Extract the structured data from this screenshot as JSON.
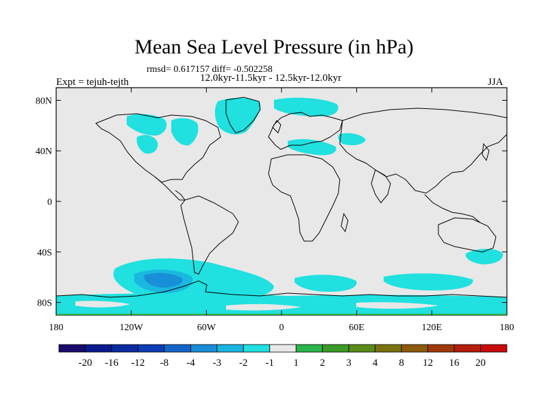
{
  "title": "Mean Sea Level Pressure (in hPa)",
  "stats": "rmsd= 0.617157 diff= -0.502258",
  "periods": "12.0kyr-11.5kyr - 12.5kyr-12.0kyr",
  "experiment": "Expt = tejuh-tejth",
  "season": "JJA",
  "map": {
    "lat_labels": [
      "80N",
      "40N",
      "0",
      "40S",
      "80S"
    ],
    "lon_labels": [
      "180",
      "120W",
      "60W",
      "0",
      "60E",
      "120E",
      "180"
    ],
    "land_color": "#e8e8e8",
    "anomaly_color_weak": "#20e0e0",
    "anomaly_color_mid": "#1ab8e0",
    "anomaly_color_strong": "#1890d8"
  },
  "colorbar": {
    "labels": [
      "-20",
      "-16",
      "-12",
      "-8",
      "-4",
      "-3",
      "-2",
      "-1",
      "1",
      "2",
      "3",
      "4",
      "8",
      "12",
      "16",
      "20"
    ],
    "colors": [
      "#1a0a6e",
      "#0a1a8c",
      "#0a2aa0",
      "#0a3cb4",
      "#1464c8",
      "#1a8cd8",
      "#1ab4e0",
      "#20e0e0",
      "#e8e8e8",
      "#2ab44a",
      "#3c9a28",
      "#5a8a1a",
      "#7a7210",
      "#8c5a0a",
      "#a0380a",
      "#b41e0a",
      "#c80a0a"
    ]
  }
}
